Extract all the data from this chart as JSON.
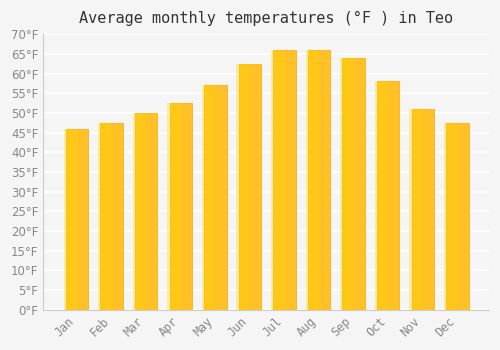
{
  "title": "Average monthly temperatures (°F ) in Teo",
  "months": [
    "Jan",
    "Feb",
    "Mar",
    "Apr",
    "May",
    "Jun",
    "Jul",
    "Aug",
    "Sep",
    "Oct",
    "Nov",
    "Dec"
  ],
  "values": [
    46,
    47.5,
    50,
    52.5,
    57,
    62.5,
    66,
    66,
    64,
    58,
    51,
    47.5
  ],
  "bar_color_main": "#FFC125",
  "bar_color_edge": "#FFA500",
  "background_color": "#f5f5f5",
  "ylim": [
    0,
    70
  ],
  "yticks": [
    0,
    5,
    10,
    15,
    20,
    25,
    30,
    35,
    40,
    45,
    50,
    55,
    60,
    65,
    70
  ],
  "title_fontsize": 11,
  "tick_fontsize": 8.5,
  "grid_color": "#ffffff",
  "axes_color": "#cccccc"
}
